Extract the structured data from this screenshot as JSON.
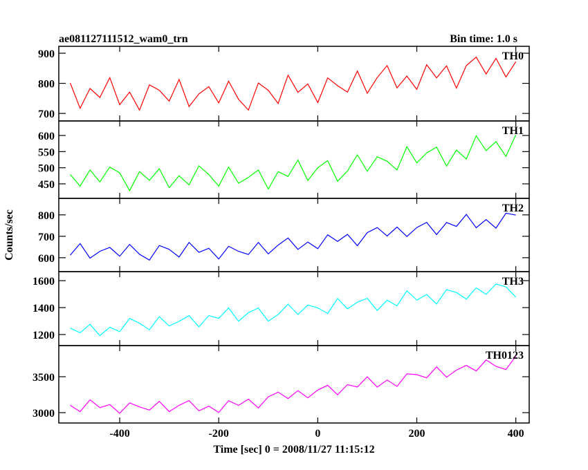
{
  "header": {
    "title": "ae081127111512_wam0_trn",
    "bin_time": "Bin time: 1.0 s"
  },
  "ylabel": "Counts/sec",
  "xlabel": "Time [sec] 0 = 2008/11/27 11:15:12",
  "chart_data": [
    {
      "type": "line",
      "label": "TH0",
      "color": "#ff0000",
      "xlim": [
        -523,
        427
      ],
      "xticks": [
        -400,
        -200,
        0,
        200,
        400
      ],
      "ylim": [
        675,
        923
      ],
      "yticks": [
        700,
        800,
        900
      ],
      "x": [
        -500,
        -480,
        -460,
        -440,
        -420,
        -400,
        -380,
        -360,
        -340,
        -320,
        -300,
        -280,
        -260,
        -240,
        -220,
        -200,
        -180,
        -160,
        -140,
        -120,
        -100,
        -80,
        -60,
        -40,
        -20,
        0,
        20,
        40,
        60,
        80,
        100,
        120,
        140,
        160,
        180,
        200,
        220,
        240,
        260,
        280,
        300,
        320,
        340,
        360,
        380,
        400
      ],
      "values": [
        801,
        717,
        783,
        753,
        819,
        729,
        771,
        711,
        795,
        777,
        741,
        813,
        723,
        765,
        789,
        735,
        807,
        747,
        711,
        801,
        777,
        733,
        827,
        770,
        798,
        736,
        818,
        792,
        771,
        841,
        767,
        819,
        859,
        785,
        824,
        780,
        862,
        818,
        858,
        784,
        859,
        887,
        831,
        883,
        821,
        872
      ]
    },
    {
      "type": "line",
      "label": "TH1",
      "color": "#00ff00",
      "xlim": [
        -523,
        427
      ],
      "xticks": [
        -400,
        -200,
        0,
        200,
        400
      ],
      "ylim": [
        405,
        645
      ],
      "yticks": [
        450,
        500,
        550,
        600
      ],
      "x": [
        -500,
        -480,
        -460,
        -440,
        -420,
        -400,
        -380,
        -360,
        -340,
        -320,
        -300,
        -280,
        -260,
        -240,
        -220,
        -200,
        -180,
        -160,
        -140,
        -120,
        -100,
        -80,
        -60,
        -40,
        -20,
        0,
        20,
        40,
        60,
        80,
        100,
        120,
        140,
        160,
        180,
        200,
        220,
        240,
        260,
        280,
        300,
        320,
        340,
        360,
        380,
        400
      ],
      "values": [
        479,
        443,
        493,
        456,
        502,
        484,
        429,
        488,
        461,
        497,
        438,
        475,
        447,
        506,
        479,
        443,
        502,
        452,
        470,
        493,
        434,
        488,
        473,
        524,
        460,
        500,
        522,
        458,
        490,
        540,
        489,
        534,
        520,
        493,
        565,
        515,
        546,
        564,
        505,
        555,
        527,
        599,
        553,
        581,
        535,
        602
      ]
    },
    {
      "type": "line",
      "label": "TH2",
      "color": "#0000ff",
      "xlim": [
        -523,
        427
      ],
      "xticks": [
        -400,
        -200,
        0,
        200,
        400
      ],
      "ylim": [
        535,
        877
      ],
      "yticks": [
        600,
        700,
        800
      ],
      "x": [
        -500,
        -480,
        -460,
        -440,
        -420,
        -400,
        -380,
        -360,
        -340,
        -320,
        -300,
        -280,
        -260,
        -240,
        -220,
        -200,
        -180,
        -160,
        -140,
        -120,
        -100,
        -80,
        -60,
        -40,
        -20,
        0,
        20,
        40,
        60,
        80,
        100,
        120,
        140,
        160,
        180,
        200,
        220,
        240,
        260,
        280,
        300,
        320,
        340,
        360,
        380,
        400
      ],
      "values": [
        612,
        666,
        598,
        630,
        648,
        607,
        662,
        616,
        589,
        657,
        639,
        603,
        671,
        625,
        644,
        594,
        653,
        630,
        615,
        671,
        618,
        659,
        692,
        639,
        673,
        642,
        707,
        676,
        709,
        656,
        717,
        741,
        701,
        743,
        699,
        741,
        765,
        708,
        764,
        746,
        802,
        740,
        778,
        738,
        808,
        799
      ]
    },
    {
      "type": "line",
      "label": "TH3",
      "color": "#00ffff",
      "xlim": [
        -523,
        427
      ],
      "xticks": [
        -400,
        -200,
        0,
        200,
        400
      ],
      "ylim": [
        1118,
        1667
      ],
      "yticks": [
        1200,
        1400,
        1600
      ],
      "x": [
        -500,
        -480,
        -460,
        -440,
        -420,
        -400,
        -380,
        -360,
        -340,
        -320,
        -300,
        -280,
        -260,
        -240,
        -220,
        -200,
        -180,
        -160,
        -140,
        -120,
        -100,
        -80,
        -60,
        -40,
        -20,
        0,
        20,
        40,
        60,
        80,
        100,
        120,
        140,
        160,
        180,
        200,
        220,
        240,
        260,
        280,
        300,
        320,
        340,
        360,
        380,
        400
      ],
      "values": [
        1248,
        1213,
        1276,
        1192,
        1255,
        1221,
        1319,
        1284,
        1235,
        1333,
        1263,
        1298,
        1340,
        1257,
        1341,
        1320,
        1397,
        1299,
        1362,
        1397,
        1299,
        1349,
        1426,
        1349,
        1419,
        1398,
        1356,
        1468,
        1391,
        1440,
        1469,
        1378,
        1455,
        1413,
        1525,
        1455,
        1497,
        1427,
        1533,
        1512,
        1463,
        1547,
        1498,
        1575,
        1554,
        1477
      ]
    },
    {
      "type": "line",
      "label": "TH0123",
      "color": "#ff00ff",
      "xlim": [
        -523,
        427
      ],
      "xticks": [
        -400,
        -200,
        0,
        200,
        400
      ],
      "ylim": [
        2856,
        3933
      ],
      "yticks": [
        3000,
        3500
      ],
      "x": [
        -500,
        -480,
        -460,
        -440,
        -420,
        -400,
        -380,
        -360,
        -340,
        -320,
        -300,
        -280,
        -260,
        -240,
        -220,
        -200,
        -180,
        -160,
        -140,
        -120,
        -100,
        -80,
        -60,
        -40,
        -20,
        0,
        20,
        40,
        60,
        80,
        100,
        120,
        140,
        160,
        180,
        200,
        220,
        240,
        260,
        280,
        300,
        320,
        340,
        360,
        380,
        400
      ],
      "values": [
        3102,
        3014,
        3179,
        3069,
        3113,
        2992,
        3135,
        3080,
        3036,
        3157,
        3014,
        3102,
        3168,
        3025,
        3091,
        3003,
        3167,
        3101,
        3188,
        3066,
        3220,
        3285,
        3196,
        3306,
        3206,
        3315,
        3381,
        3248,
        3390,
        3357,
        3499,
        3355,
        3454,
        3365,
        3540,
        3529,
        3484,
        3637,
        3494,
        3592,
        3657,
        3580,
        3733,
        3644,
        3600,
        3786
      ]
    }
  ]
}
